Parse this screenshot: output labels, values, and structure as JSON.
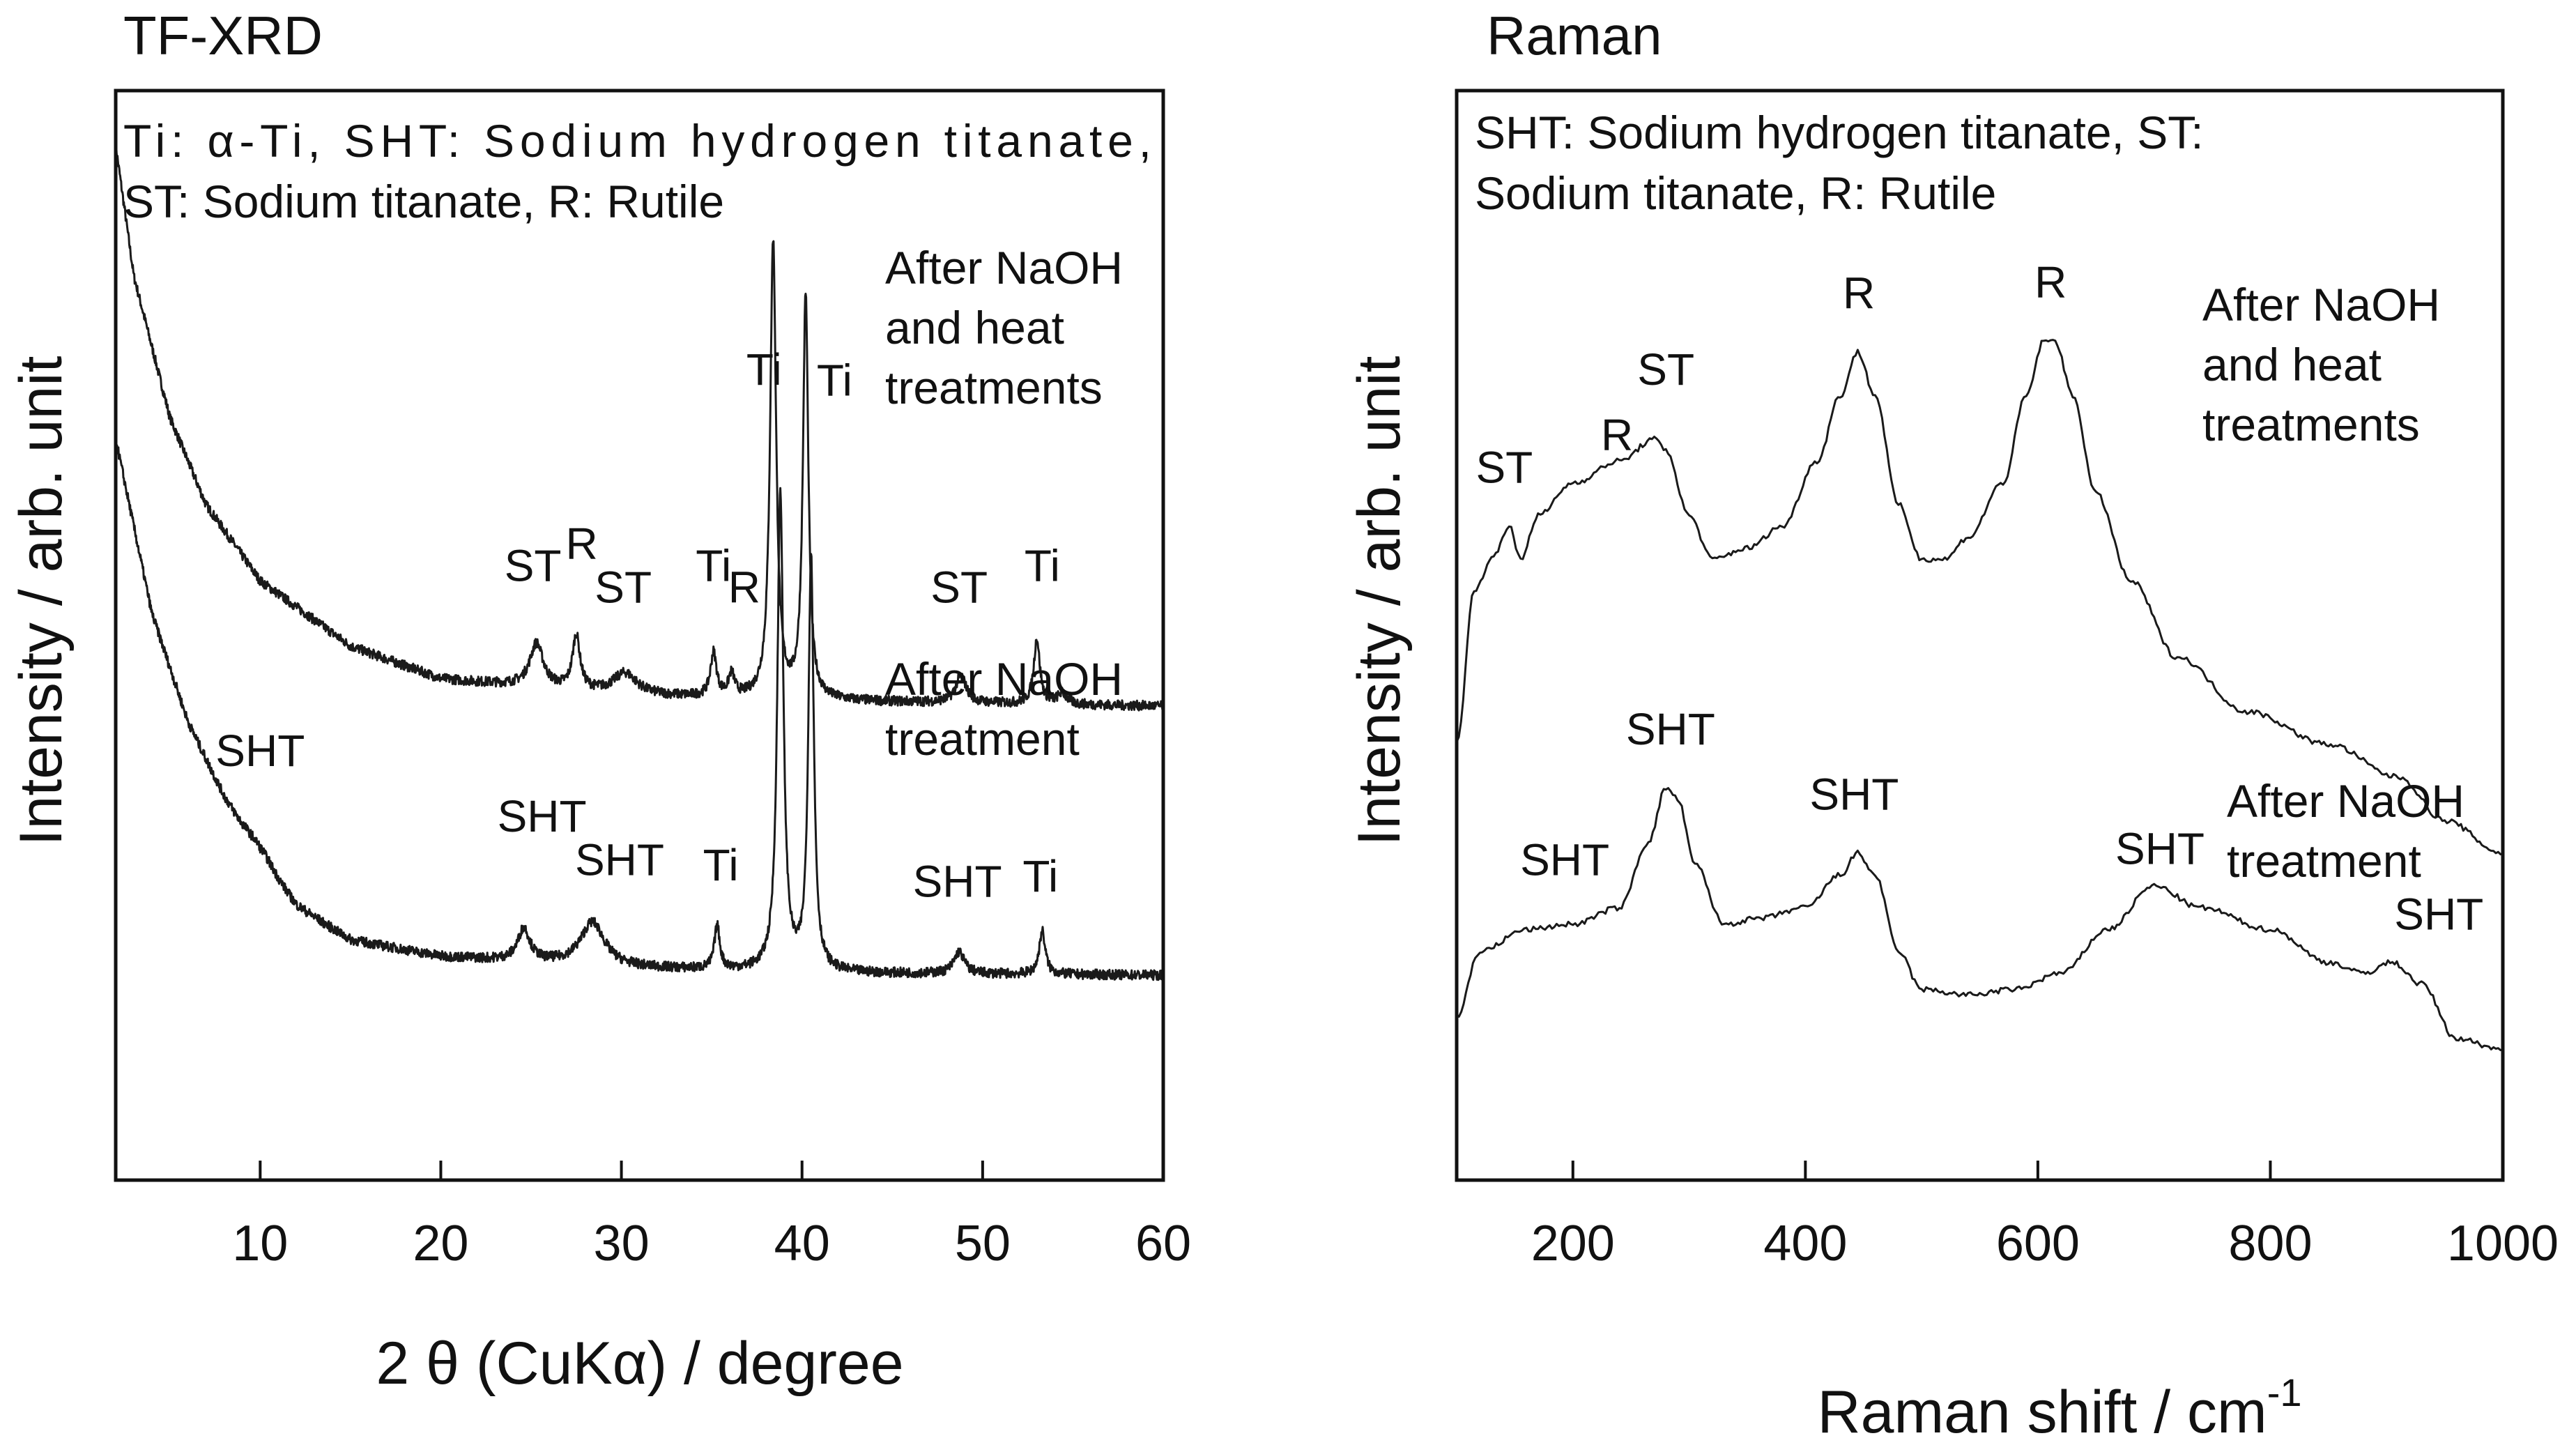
{
  "chart_data": [
    {
      "type": "line",
      "title": "TF-XRD",
      "legend": [
        "Ti: α-Ti, SHT: Sodium hydrogen titanate,",
        "ST: Sodium titanate, R: Rutile"
      ],
      "xlabel": "2 θ (CuKα) / degree",
      "ylabel": "Intensity / arb. unit",
      "xlim": [
        2,
        60
      ],
      "ylim": [
        0,
        100
      ],
      "xticks": [
        10,
        20,
        30,
        40,
        50,
        60
      ],
      "series": [
        {
          "name": "After NaOH and heat treatments",
          "label_lines": [
            "After NaOH",
            "and heat",
            "treatments"
          ],
          "baseline": [
            [
              2,
              95
            ],
            [
              3,
              83
            ],
            [
              5,
              70
            ],
            [
              7,
              62
            ],
            [
              10,
              55
            ],
            [
              15,
              49
            ],
            [
              20,
              46
            ],
            [
              30,
              44.5
            ],
            [
              40,
              44
            ],
            [
              60,
              43.5
            ]
          ],
          "peaks": [
            {
              "pos": 25.3,
              "height": 4,
              "width": 0.45,
              "label": "ST"
            },
            {
              "pos": 27.5,
              "height": 5,
              "width": 0.25,
              "label": "R"
            },
            {
              "pos": 30.2,
              "height": 2,
              "width": 0.8,
              "label": "ST"
            },
            {
              "pos": 35.1,
              "height": 4,
              "width": 0.2,
              "label": "Ti"
            },
            {
              "pos": 36.1,
              "height": 2,
              "width": 0.2,
              "label": "R"
            },
            {
              "pos": 38.4,
              "height": 42,
              "width": 0.2,
              "label": "Ti"
            },
            {
              "pos": 40.2,
              "height": 37,
              "width": 0.18,
              "label": "Ti"
            },
            {
              "pos": 48.8,
              "height": 2.5,
              "width": 0.35,
              "label": "ST"
            },
            {
              "pos": 53.0,
              "height": 6,
              "width": 0.2,
              "label": "Ti"
            },
            {
              "pos": 54.4,
              "height": 1,
              "width": 0.3,
              "label": ""
            }
          ]
        },
        {
          "name": "After NaOH treatment",
          "label_lines": [
            "After NaOH",
            "treatment"
          ],
          "baseline": [
            [
              2,
              68
            ],
            [
              4,
              52
            ],
            [
              6,
              42
            ],
            [
              8,
              35
            ],
            [
              10,
              29
            ],
            [
              12,
              25
            ],
            [
              15,
              22
            ],
            [
              20,
              20.5
            ],
            [
              30,
              19.5
            ],
            [
              40,
              19
            ],
            [
              60,
              18.8
            ]
          ],
          "peaks": [
            {
              "pos": 10.0,
              "height": 1.5,
              "width": 1.0,
              "label": "SHT"
            },
            {
              "pos": 24.6,
              "height": 3,
              "width": 0.4,
              "label": "SHT"
            },
            {
              "pos": 28.4,
              "height": 4,
              "width": 0.8,
              "label": "SHT"
            },
            {
              "pos": 35.3,
              "height": 4,
              "width": 0.18,
              "label": "Ti"
            },
            {
              "pos": 38.8,
              "height": 44,
              "width": 0.2,
              "label": ""
            },
            {
              "pos": 40.5,
              "height": 38,
              "width": 0.18,
              "label": ""
            },
            {
              "pos": 48.7,
              "height": 2,
              "width": 0.35,
              "label": "SHT"
            },
            {
              "pos": 53.3,
              "height": 4,
              "width": 0.2,
              "label": "Ti"
            }
          ]
        }
      ],
      "annotations": [
        {
          "text": "SHT",
          "x": 10,
          "y": 38
        },
        {
          "text": "ST",
          "x": 25.1,
          "y": 55
        },
        {
          "text": "R",
          "x": 27.8,
          "y": 57
        },
        {
          "text": "ST",
          "x": 30.1,
          "y": 53
        },
        {
          "text": "Ti",
          "x": 35.1,
          "y": 55
        },
        {
          "text": "R",
          "x": 36.8,
          "y": 53
        },
        {
          "text": "Ti",
          "x": 37.9,
          "y": 73
        },
        {
          "text": "Ti",
          "x": 41.8,
          "y": 72
        },
        {
          "text": "ST",
          "x": 48.7,
          "y": 53
        },
        {
          "text": "Ti",
          "x": 53.3,
          "y": 55
        },
        {
          "text": "SHT",
          "x": 25.6,
          "y": 32
        },
        {
          "text": "SHT",
          "x": 29.9,
          "y": 28
        },
        {
          "text": "Ti",
          "x": 35.5,
          "y": 27.5
        },
        {
          "text": "SHT",
          "x": 48.6,
          "y": 26
        },
        {
          "text": "Ti",
          "x": 53.2,
          "y": 26.5
        }
      ]
    },
    {
      "type": "line",
      "title": "Raman",
      "legend": [
        "SHT: Sodium hydrogen titanate, ST:",
        "Sodium titanate, R: Rutile"
      ],
      "xlabel": "Raman shift / cm",
      "xlabel_superscript": "-1",
      "ylabel": "Intensity / arb. unit",
      "xlim": [
        100,
        1000
      ],
      "ylim": [
        0,
        100
      ],
      "xticks": [
        200,
        400,
        600,
        800,
        1000
      ],
      "series": [
        {
          "name": "After NaOH and heat treatments",
          "label_lines": [
            "After NaOH",
            "and heat",
            "treatments"
          ],
          "points": [
            [
              100,
              40
            ],
            [
              115,
              54
            ],
            [
              130,
              57
            ],
            [
              145,
              60
            ],
            [
              155,
              57
            ],
            [
              170,
              61
            ],
            [
              200,
              64
            ],
            [
              240,
              66
            ],
            [
              270,
              68
            ],
            [
              280,
              67
            ],
            [
              300,
              61
            ],
            [
              320,
              57
            ],
            [
              350,
              58
            ],
            [
              380,
              60
            ],
            [
              410,
              66
            ],
            [
              430,
              72
            ],
            [
              445,
              76
            ],
            [
              460,
              72
            ],
            [
              480,
              62
            ],
            [
              500,
              57
            ],
            [
              520,
              57
            ],
            [
              540,
              59
            ],
            [
              570,
              64
            ],
            [
              590,
              72
            ],
            [
              605,
              77
            ],
            [
              615,
              77
            ],
            [
              630,
              72
            ],
            [
              650,
              63
            ],
            [
              680,
              55
            ],
            [
              720,
              48
            ],
            [
              780,
              43
            ],
            [
              850,
              40
            ],
            [
              910,
              37
            ],
            [
              950,
              33
            ],
            [
              1000,
              30
            ]
          ]
        },
        {
          "name": "After NaOH treatment",
          "label_lines": [
            "After NaOH",
            "treatment"
          ],
          "points": [
            [
              100,
              15
            ],
            [
              120,
              21
            ],
            [
              160,
              23
            ],
            [
              200,
              23.5
            ],
            [
              240,
              25
            ],
            [
              265,
              31
            ],
            [
              280,
              36
            ],
            [
              290,
              35
            ],
            [
              305,
              29
            ],
            [
              330,
              23.5
            ],
            [
              360,
              24
            ],
            [
              400,
              25
            ],
            [
              430,
              28
            ],
            [
              445,
              30
            ],
            [
              460,
              28
            ],
            [
              480,
              21
            ],
            [
              500,
              17.5
            ],
            [
              540,
              17
            ],
            [
              580,
              17.5
            ],
            [
              620,
              19
            ],
            [
              660,
              23
            ],
            [
              700,
              27
            ],
            [
              740,
              25
            ],
            [
              800,
              23
            ],
            [
              850,
              20
            ],
            [
              880,
              19
            ],
            [
              905,
              20
            ],
            [
              930,
              18
            ],
            [
              960,
              13
            ],
            [
              1000,
              12
            ]
          ]
        }
      ],
      "annotations": [
        {
          "text": "ST",
          "x": 141,
          "y": 64
        },
        {
          "text": "R",
          "x": 238,
          "y": 67
        },
        {
          "text": "ST",
          "x": 280,
          "y": 73
        },
        {
          "text": "R",
          "x": 446,
          "y": 80
        },
        {
          "text": "R",
          "x": 611,
          "y": 81
        },
        {
          "text": "SHT",
          "x": 284,
          "y": 40
        },
        {
          "text": "SHT",
          "x": 193,
          "y": 28
        },
        {
          "text": "SHT",
          "x": 442,
          "y": 34
        },
        {
          "text": "SHT",
          "x": 705,
          "y": 29
        },
        {
          "text": "SHT",
          "x": 945,
          "y": 23
        }
      ]
    }
  ]
}
